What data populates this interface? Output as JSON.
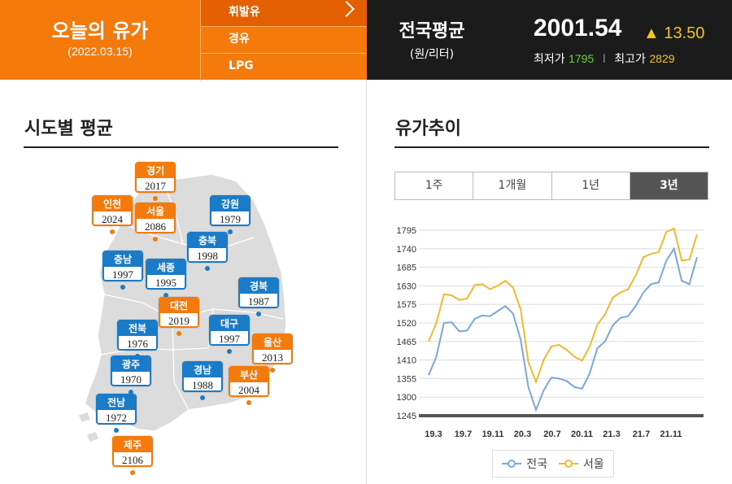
{
  "today": {
    "title": "오늘의 유가",
    "date": "(2022.03.15)"
  },
  "fuel_menu": [
    {
      "label": "휘발유",
      "active": true
    },
    {
      "label": "경유",
      "active": false
    },
    {
      "label": "LPG",
      "active": false
    }
  ],
  "national": {
    "title": "전국평균",
    "unit": "(원/리터)",
    "price": "2001.54",
    "change": "▲ 13.50",
    "low_label": "최저가",
    "low_value": "1795",
    "high_label": "최고가",
    "high_value": "2829",
    "separator": "I"
  },
  "region_section": {
    "title": "시도별 평균"
  },
  "regions": [
    {
      "name": "경기",
      "value": "2017",
      "type": "o"
    },
    {
      "name": "인천",
      "value": "2024",
      "type": "o"
    },
    {
      "name": "서울",
      "value": "2086",
      "type": "o"
    },
    {
      "name": "강원",
      "value": "1979",
      "type": "b"
    },
    {
      "name": "충북",
      "value": "1998",
      "type": "b"
    },
    {
      "name": "충남",
      "value": "1997",
      "type": "b"
    },
    {
      "name": "세종",
      "value": "1995",
      "type": "b"
    },
    {
      "name": "경북",
      "value": "1987",
      "type": "b"
    },
    {
      "name": "대전",
      "value": "2019",
      "type": "o"
    },
    {
      "name": "전북",
      "value": "1976",
      "type": "b"
    },
    {
      "name": "대구",
      "value": "1997",
      "type": "b"
    },
    {
      "name": "울산",
      "value": "2013",
      "type": "o"
    },
    {
      "name": "광주",
      "value": "1970",
      "type": "b"
    },
    {
      "name": "경남",
      "value": "1988",
      "type": "b"
    },
    {
      "name": "부산",
      "value": "2004",
      "type": "o"
    },
    {
      "name": "전남",
      "value": "1972",
      "type": "b"
    },
    {
      "name": "제주",
      "value": "2106",
      "type": "o"
    }
  ],
  "trend_section": {
    "title": "유가추이"
  },
  "period_tabs": [
    {
      "label": "1주",
      "selected": false
    },
    {
      "label": "1개월",
      "selected": false
    },
    {
      "label": "1년",
      "selected": false
    },
    {
      "label": "3년",
      "selected": true
    }
  ],
  "colors": {
    "orange": "#f47a0c",
    "blue": "#1a7cc8",
    "national_line": "#7aa7e0",
    "seoul_line": "#f2b92c"
  },
  "chart_data": {
    "type": "line",
    "x_ticks": [
      "19.3",
      "19.7",
      "19.11",
      "20.3",
      "20.7",
      "20.11",
      "21.3",
      "21.7",
      "21.11"
    ],
    "y_ticks": [
      1245,
      1300,
      1355,
      1410,
      1465,
      1520,
      1575,
      1630,
      1685,
      1740,
      1795
    ],
    "ylim": [
      1245,
      1795
    ],
    "grid": true,
    "legend_position": "bottom",
    "series": [
      {
        "name": "전국",
        "values": [
          1365,
          1420,
          1520,
          1522,
          1495,
          1497,
          1532,
          1542,
          1540,
          1555,
          1570,
          1548,
          1470,
          1330,
          1262,
          1320,
          1358,
          1355,
          1348,
          1330,
          1325,
          1370,
          1445,
          1465,
          1512,
          1535,
          1540,
          1570,
          1610,
          1635,
          1640,
          1705,
          1740,
          1645,
          1635,
          1715
        ]
      },
      {
        "name": "서울",
        "values": [
          1465,
          1520,
          1605,
          1602,
          1588,
          1592,
          1632,
          1635,
          1620,
          1630,
          1645,
          1625,
          1560,
          1405,
          1345,
          1410,
          1450,
          1455,
          1440,
          1420,
          1408,
          1450,
          1515,
          1545,
          1595,
          1610,
          1620,
          1660,
          1715,
          1725,
          1730,
          1790,
          1800,
          1705,
          1708,
          1782
        ]
      }
    ]
  }
}
